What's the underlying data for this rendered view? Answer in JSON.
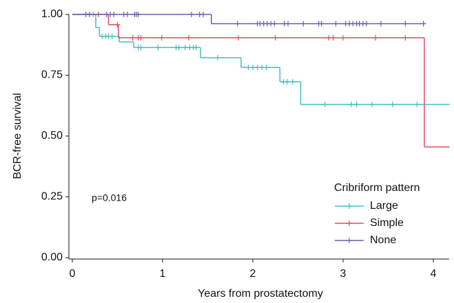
{
  "chart_data": {
    "type": "survival",
    "y_label": "BCR-free survival",
    "x_label": "Years from prostatectomy",
    "annotation": "p=0.016",
    "legend_title": "Cribriform pattern",
    "legend": "bottom-right",
    "xlim": [
      0,
      4.18
    ],
    "ylim": [
      0,
      1
    ],
    "xticks": [
      0,
      1,
      2,
      3,
      4
    ],
    "yticks": [
      {
        "value": 0,
        "label": "0.00"
      },
      {
        "value": 0.25,
        "label": "0.25"
      },
      {
        "value": 0.5,
        "label": "0.50"
      },
      {
        "value": 0.75,
        "label": "0.75"
      },
      {
        "value": 1,
        "label": "1.00"
      }
    ],
    "series": [
      {
        "name": "Large",
        "color": "#3fbfbf",
        "x": [
          0,
          0.26,
          0.3,
          0.52,
          0.68,
          1.42,
          1.87,
          2.3,
          2.53,
          4.18
        ],
        "values": [
          1,
          0.946,
          0.91,
          0.887,
          0.864,
          0.822,
          0.782,
          0.723,
          0.63,
          0.63
        ],
        "censor_x": [
          0.19,
          0.23,
          0.33,
          0.37,
          0.4,
          0.44,
          0.73,
          0.76,
          0.95,
          1.15,
          1.18,
          1.25,
          1.3,
          1.34,
          1.37,
          1.61,
          1.95,
          2.0,
          2.05,
          2.1,
          2.15,
          2.34,
          2.38,
          2.44,
          2.8,
          3.09,
          3.15,
          3.32,
          3.55,
          3.82
        ],
        "censor_values": [
          1,
          1,
          0.91,
          0.91,
          0.91,
          0.91,
          0.864,
          0.864,
          0.864,
          0.864,
          0.864,
          0.864,
          0.864,
          0.864,
          0.864,
          0.822,
          0.782,
          0.782,
          0.782,
          0.782,
          0.782,
          0.723,
          0.723,
          0.723,
          0.63,
          0.63,
          0.63,
          0.63,
          0.63,
          0.63
        ]
      },
      {
        "name": "Simple",
        "color": "#e8495e",
        "x": [
          0,
          0.4,
          0.51,
          3.9,
          4.18
        ],
        "values": [
          1,
          0.958,
          0.904,
          0.455,
          0.455
        ],
        "censor_x": [
          0.29,
          0.5,
          0.67,
          0.73,
          0.76,
          0.99,
          1.29,
          1.84,
          2.25,
          2.84,
          2.89,
          3.0,
          3.36,
          3.69
        ],
        "censor_values": [
          1,
          0.958,
          0.904,
          0.904,
          0.904,
          0.904,
          0.904,
          0.904,
          0.904,
          0.904,
          0.904,
          0.904,
          0.904,
          0.904
        ]
      },
      {
        "name": "None",
        "color": "#6a5bae",
        "x": [
          0,
          1.54,
          3.91
        ],
        "values": [
          1,
          0.962,
          0.962
        ],
        "censor_x": [
          0.15,
          0.19,
          0.38,
          0.42,
          0.46,
          0.57,
          0.61,
          0.69,
          0.71,
          0.73,
          1.32,
          1.41,
          1.45,
          1.83,
          2.05,
          2.08,
          2.12,
          2.16,
          2.2,
          2.24,
          2.35,
          2.39,
          2.56,
          2.73,
          2.76,
          2.92,
          3.03,
          3.07,
          3.11,
          3.15,
          3.18,
          3.22,
          3.26,
          3.42,
          3.69,
          3.89
        ],
        "censor_values": [
          1,
          1,
          1,
          1,
          1,
          1,
          1,
          1,
          1,
          1,
          1,
          1,
          1,
          0.962,
          0.962,
          0.962,
          0.962,
          0.962,
          0.962,
          0.962,
          0.962,
          0.962,
          0.962,
          0.962,
          0.962,
          0.962,
          0.962,
          0.962,
          0.962,
          0.962,
          0.962,
          0.962,
          0.962,
          0.962,
          0.962,
          0.962
        ]
      }
    ]
  }
}
